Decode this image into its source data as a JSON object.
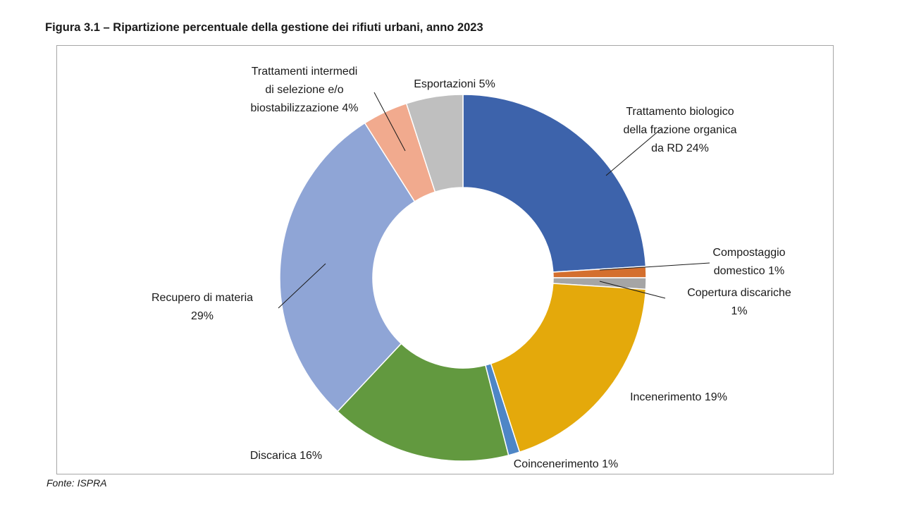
{
  "title": "Figura 3.1 – Ripartizione percentuale della gestione dei rifiuti urbani, anno 2023",
  "source": "Fonte: ISPRA",
  "chart_data": {
    "type": "pie",
    "variant": "donut",
    "unit": "%",
    "slices": [
      {
        "label": [
          "Trattamento biologico",
          "della frazione organica",
          "da RD 24%"
        ],
        "value": 24,
        "color": "#3d63ab"
      },
      {
        "label": [
          "Compostaggio",
          "domestico 1%"
        ],
        "value": 1,
        "color": "#d46f2e"
      },
      {
        "label": [
          "Copertura discariche",
          "1%"
        ],
        "value": 1,
        "color": "#a5a5a5"
      },
      {
        "label": [
          "Incenerimento 19%"
        ],
        "value": 19,
        "color": "#e4a90b"
      },
      {
        "label": [
          "Coincenerimento 1%"
        ],
        "value": 1,
        "color": "#4e86c6"
      },
      {
        "label": [
          "Discarica 16%"
        ],
        "value": 16,
        "color": "#62993f"
      },
      {
        "label": [
          "Recupero di materia",
          "29%"
        ],
        "value": 29,
        "color": "#8fa5d6"
      },
      {
        "label": [
          "Trattamenti intermedi",
          "di selezione e/o",
          "biostabilizzazione 4%"
        ],
        "value": 4,
        "color": "#f1aa8e"
      },
      {
        "label": [
          "Esportazioni 5%"
        ],
        "value": 5,
        "color": "#bfbfbf"
      }
    ]
  }
}
